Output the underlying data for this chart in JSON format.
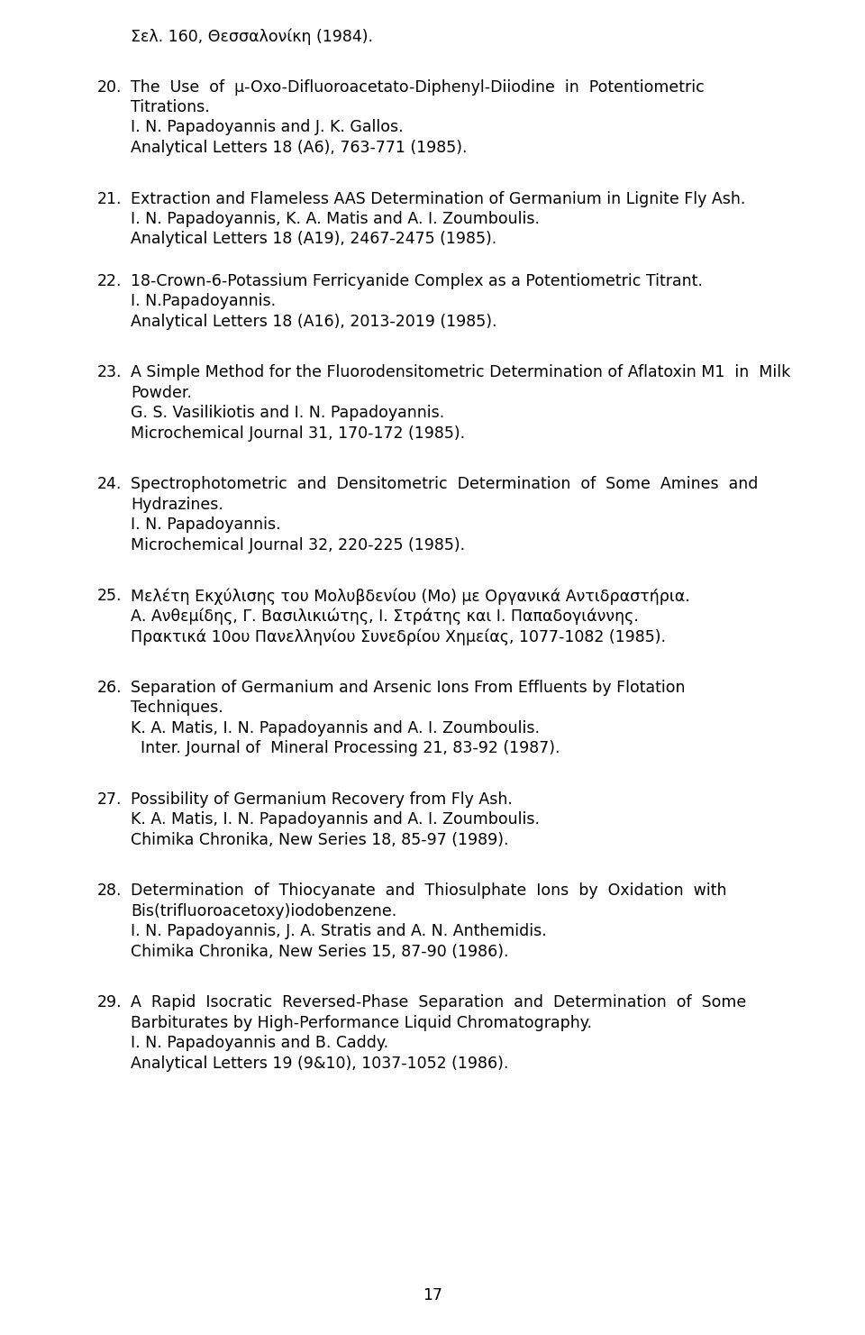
{
  "background_color": "#ffffff",
  "text_color": "#000000",
  "font_size": 12.5,
  "page_number": "17",
  "entries": [
    {
      "number": "",
      "lines": [
        [
          "Σελ. 160, Θεσσαλονίκη (1984).",
          false
        ]
      ],
      "extra_before": 0
    },
    {
      "number": "20.",
      "lines": [
        [
          "The  Use  of  μ-Oxo-Difluoroacetato-Diphenyl-Diiodine  in  Potentiometric",
          false
        ],
        [
          "Titrations.",
          false
        ],
        [
          "I. N. Papadoyannis and J. K. Gallos.",
          false
        ],
        [
          "Analytical Letters 18 (A6), 763-771 (1985).",
          false
        ]
      ],
      "extra_before": 2
    },
    {
      "number": "21.",
      "lines": [
        [
          "Extraction and Flameless AAS Determination of Germanium in Lignite Fly Ash.",
          false
        ],
        [
          "I. N. Papadoyannis, K. A. Matis and A. I. Zoumboulis.",
          false
        ],
        [
          "Analytical Letters 18 (A19), 2467-2475 (1985).",
          false
        ]
      ],
      "extra_before": 2
    },
    {
      "number": "22.",
      "lines": [
        [
          "18-Crown-6-Potassium Ferricyanide Complex as a Potentiometric Titrant.",
          false
        ],
        [
          "I. N.Papadoyannis.",
          false
        ],
        [
          "Analytical Letters 18 (A16), 2013-2019 (1985).",
          false
        ]
      ],
      "extra_before": 1
    },
    {
      "number": "23.",
      "lines": [
        [
          "A Simple Method for the Fluorodensitometric Determination of Aflatoxin M1  in  Milk",
          false
        ],
        [
          "Powder.",
          false
        ],
        [
          "G. S. Vasilikiotis and I. N. Papadoyannis.",
          false
        ],
        [
          "Microchemical Journal 31, 170-172 (1985).",
          false
        ]
      ],
      "extra_before": 2
    },
    {
      "number": "24.",
      "lines": [
        [
          "Spectrophotometric  and  Densitometric  Determination  of  Some  Amines  and",
          false
        ],
        [
          "Hydrazines.",
          false
        ],
        [
          "I. N. Papadoyannis.",
          false
        ],
        [
          "Microchemical Journal 32, 220-225 (1985).",
          false
        ]
      ],
      "extra_before": 2
    },
    {
      "number": "25.",
      "lines": [
        [
          "Μελέτη Εκχύλισης του Μολυβδενίου (Mo) με Οργανικά Αντιδραστήρια.",
          false
        ],
        [
          "Α. Ανθεμίδης, Γ. Βασιλικιώτης, Ι. Στράτης και Ι. Παπαδογιάννης.",
          false
        ],
        [
          "Πρακτικά 10ου Πανελληνίου Συνεδρίου Χημείας, 1077-1082 (1985).",
          false
        ]
      ],
      "extra_before": 2
    },
    {
      "number": "26.",
      "lines": [
        [
          "Separation of Germanium and Arsenic Ions From Effluents by Flotation",
          false
        ],
        [
          "Techniques.",
          false
        ],
        [
          "K. A. Matis, I. N. Papadoyannis and A. I. Zoumboulis.",
          false
        ],
        [
          "  Inter. Journal of  Mineral Processing 21, 83-92 (1987).",
          false
        ]
      ],
      "extra_before": 2
    },
    {
      "number": "27.",
      "lines": [
        [
          "Possibility of Germanium Recovery from Fly Ash.",
          false
        ],
        [
          "K. A. Matis, I. N. Papadoyannis and A. I. Zoumboulis.",
          false
        ],
        [
          "Chimika Chronika, New Series 18, 85-97 (1989).",
          false
        ]
      ],
      "extra_before": 2
    },
    {
      "number": "28.",
      "lines": [
        [
          "Determination  of  Thiocyanate  and  Thiosulphate  Ions  by  Oxidation  with",
          false
        ],
        [
          "Bis(trifluoroacetoxy)iodobenzene.",
          false
        ],
        [
          "I. N. Papadoyannis, J. A. Stratis and A. N. Anthemidis.",
          false
        ],
        [
          "Chimika Chronika, New Series 15, 87-90 (1986).",
          false
        ]
      ],
      "extra_before": 2
    },
    {
      "number": "29.",
      "lines": [
        [
          "A  Rapid  Isocratic  Reversed-Phase  Separation  and  Determination  of  Some",
          false
        ],
        [
          "Barbiturates by High-Performance Liquid Chromatography.",
          false
        ],
        [
          "I. N. Papadoyannis and B. Caddy.",
          false
        ],
        [
          "Analytical Letters 19 (9&10), 1037-1052 (1986).",
          false
        ]
      ],
      "extra_before": 2
    }
  ]
}
